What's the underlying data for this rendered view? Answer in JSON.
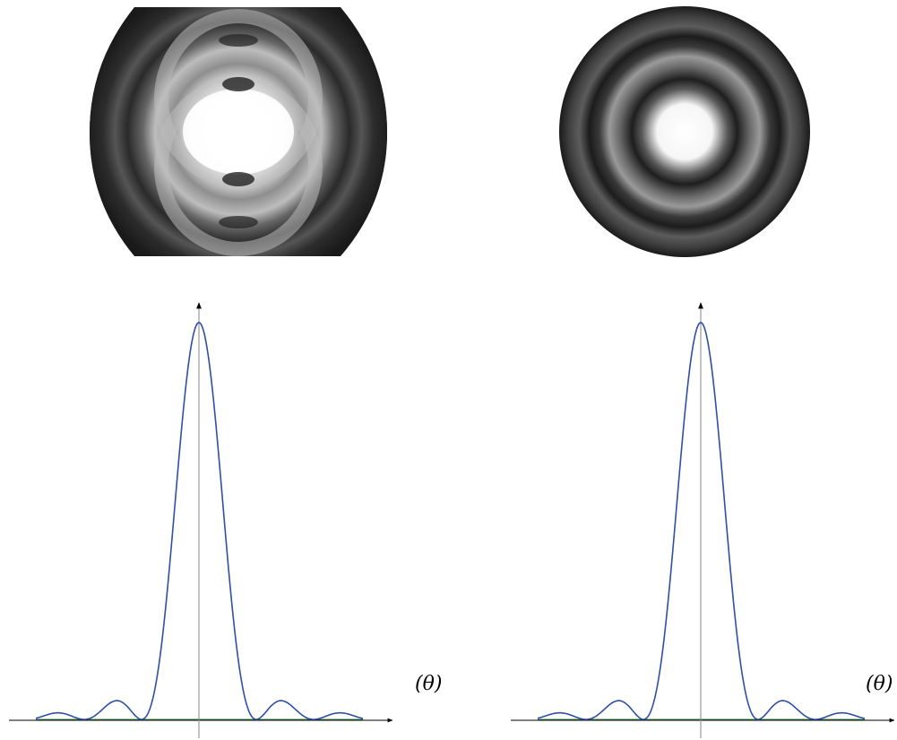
{
  "figure": {
    "panels": [
      {
        "pattern_name": "distorted-diffraction-pattern",
        "axis_label": "(θ)",
        "curve_color": "#2f4fa6",
        "axis_color": "#000000",
        "baseline_color": "#3a8a3a"
      },
      {
        "pattern_name": "circular-diffraction-pattern",
        "axis_label": "(θ)",
        "curve_color": "#2f4fa6",
        "axis_color": "#000000",
        "baseline_color": "#3a8a3a"
      }
    ]
  }
}
